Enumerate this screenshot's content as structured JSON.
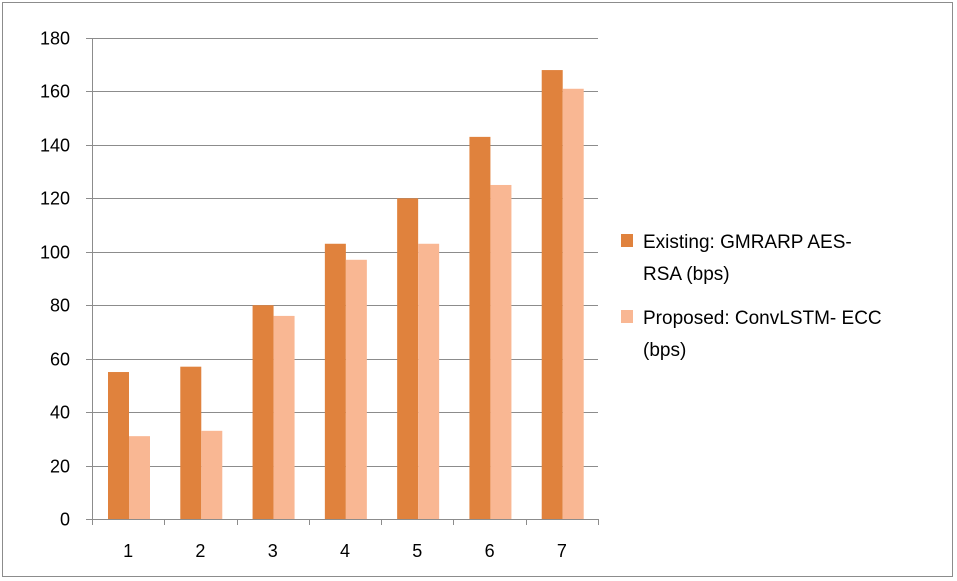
{
  "chart_data": {
    "type": "bar",
    "categories": [
      "1",
      "2",
      "3",
      "4",
      "5",
      "6",
      "7"
    ],
    "series": [
      {
        "name": "Existing: GMRARP AES-RSA (bps)",
        "legend_lines": [
          "Existing: GMRARP AES-",
          "RSA (bps)"
        ],
        "color": "#e0823d",
        "values": [
          55,
          57,
          80,
          103,
          120,
          143,
          168
        ]
      },
      {
        "name": "Proposed: ConvLSTM- ECC (bps)",
        "legend_lines": [
          "Proposed: ConvLSTM- ECC",
          "(bps)"
        ],
        "color": "#f9b793",
        "values": [
          31,
          33,
          76,
          97,
          103,
          125,
          161
        ]
      }
    ],
    "y_ticks": [
      0,
      20,
      40,
      60,
      80,
      100,
      120,
      140,
      160,
      180
    ],
    "ylim": [
      0,
      180
    ],
    "grid": true,
    "legend_position": "right",
    "title": "",
    "xlabel": "",
    "ylabel": ""
  },
  "colors": {
    "gridline": "#8c8c8c",
    "axis": "#8c8c8c"
  }
}
